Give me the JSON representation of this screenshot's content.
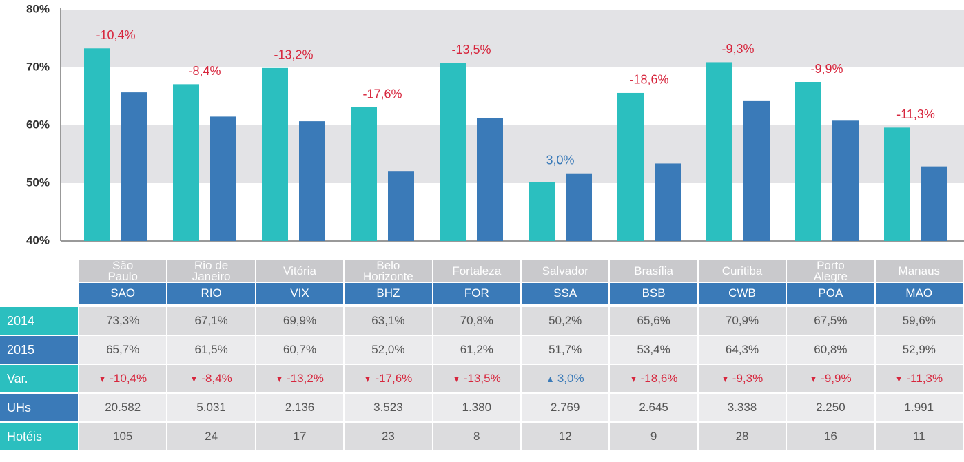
{
  "chart_data": {
    "type": "bar",
    "categories": [
      "SAO",
      "RIO",
      "VIX",
      "BHZ",
      "FOR",
      "SSA",
      "BSB",
      "CWB",
      "POA",
      "MAO"
    ],
    "series": [
      {
        "name": "2014",
        "color": "#2bbfbf",
        "values": [
          73.3,
          67.1,
          69.9,
          63.1,
          70.8,
          50.2,
          65.6,
          70.9,
          67.5,
          59.6
        ],
        "value_labels": [
          "73,3%",
          "67,1%",
          "69,9%",
          "63,1%",
          "70,8%",
          "50,2%",
          "65,6%",
          "70,9%",
          "67,5%",
          "59,6%"
        ]
      },
      {
        "name": "2015",
        "color": "#3a7ab8",
        "values": [
          65.7,
          61.5,
          60.7,
          52.0,
          61.2,
          51.7,
          53.4,
          64.3,
          60.8,
          52.9
        ],
        "value_labels": [
          "65,7%",
          "61,5%",
          "60,7%",
          "52,0%",
          "61,2%",
          "51,7%",
          "53,4%",
          "64,3%",
          "60,8%",
          "52,9%"
        ]
      }
    ],
    "annotations": [
      "-10,4%",
      "-8,4%",
      "-13,2%",
      "-17,6%",
      "-13,5%",
      "3,0%",
      "-18,6%",
      "-9,3%",
      "-9,9%",
      "-11,3%"
    ],
    "decrease_color": "#d7263d",
    "increase_color": "#3a7ab8",
    "ylim": [
      40,
      80
    ],
    "yticks": [
      {
        "value": 40,
        "label": "40%"
      },
      {
        "value": 50,
        "label": "50%"
      },
      {
        "value": 60,
        "label": "60%"
      },
      {
        "value": 70,
        "label": "70%"
      },
      {
        "value": 80,
        "label": "80%"
      }
    ],
    "grid": true
  },
  "table": {
    "names": [
      "São\nPaulo",
      "Rio de\nJaneiro",
      "Vitória",
      "Belo\nHorizonte",
      "Fortaleza",
      "Salvador",
      "Brasília",
      "Curitiba",
      "Porto\nAlegre",
      "Manaus"
    ],
    "var_label": "Var.",
    "uhs_label": "UHs",
    "uhs": [
      "20.582",
      "5.031",
      "2.136",
      "3.523",
      "1.380",
      "2.769",
      "2.645",
      "3.338",
      "2.250",
      "1.991"
    ],
    "hotels_label": "Hotéis",
    "hotels": [
      105,
      24,
      17,
      23,
      8,
      12,
      9,
      28,
      16,
      11
    ]
  }
}
